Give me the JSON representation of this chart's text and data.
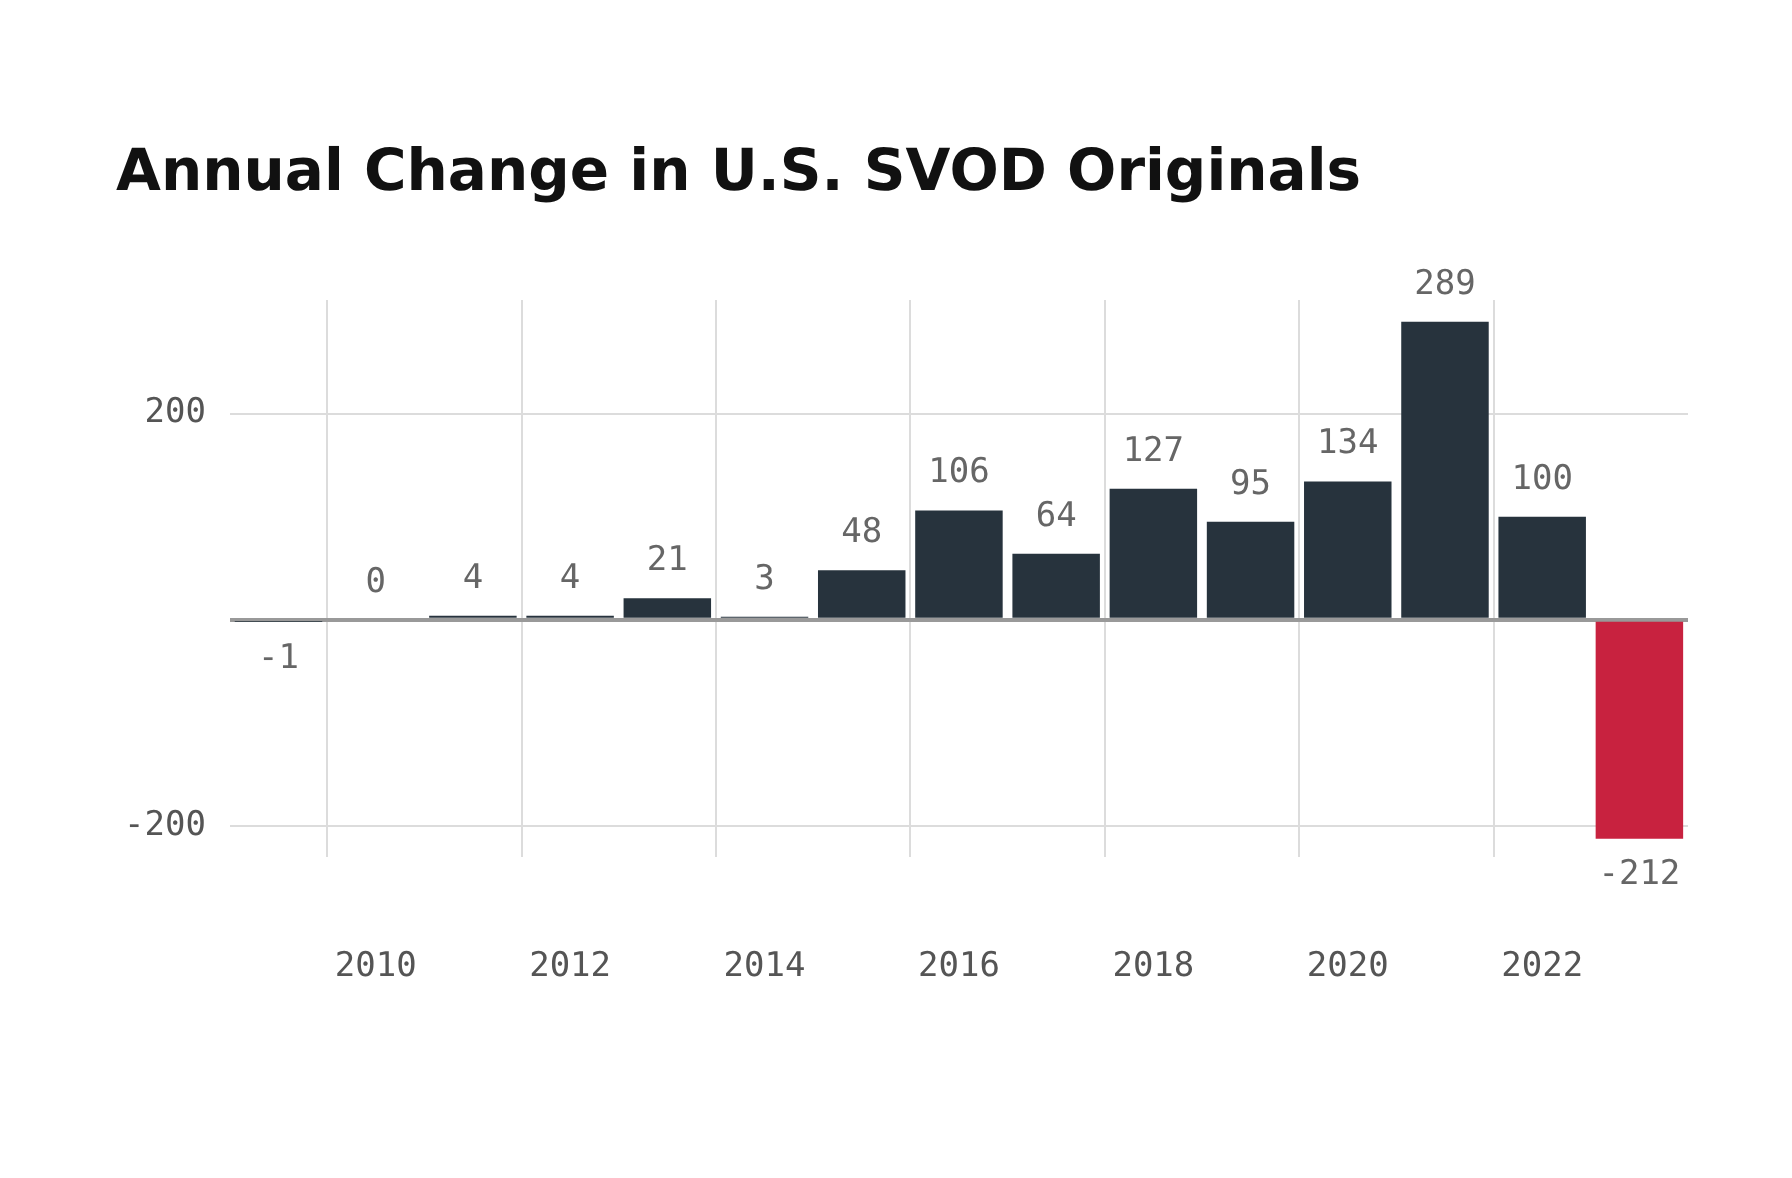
{
  "chart_data": {
    "type": "bar",
    "title": "Annual Change in U.S. SVOD Originals",
    "categories": [
      null,
      "2010",
      null,
      "2012",
      null,
      "2014",
      null,
      "2016",
      null,
      "2018",
      null,
      "2020",
      null,
      "2022",
      null
    ],
    "values": [
      -1,
      0,
      4,
      4,
      21,
      3,
      48,
      106,
      64,
      127,
      95,
      134,
      289,
      100,
      -212
    ],
    "colors": [
      "#27333d",
      "#27333d",
      "#27333d",
      "#27333d",
      "#27333d",
      "#27333d",
      "#27333d",
      "#27333d",
      "#27333d",
      "#27333d",
      "#27333d",
      "#27333d",
      "#27333d",
      "#27333d",
      "#c8223f"
    ],
    "ylim": [
      -230,
      310
    ],
    "yticks": [
      -200,
      {
        "value": 0,
        "label": null
      },
      200
    ],
    "grid": true,
    "data_labels": true,
    "legend": false
  }
}
